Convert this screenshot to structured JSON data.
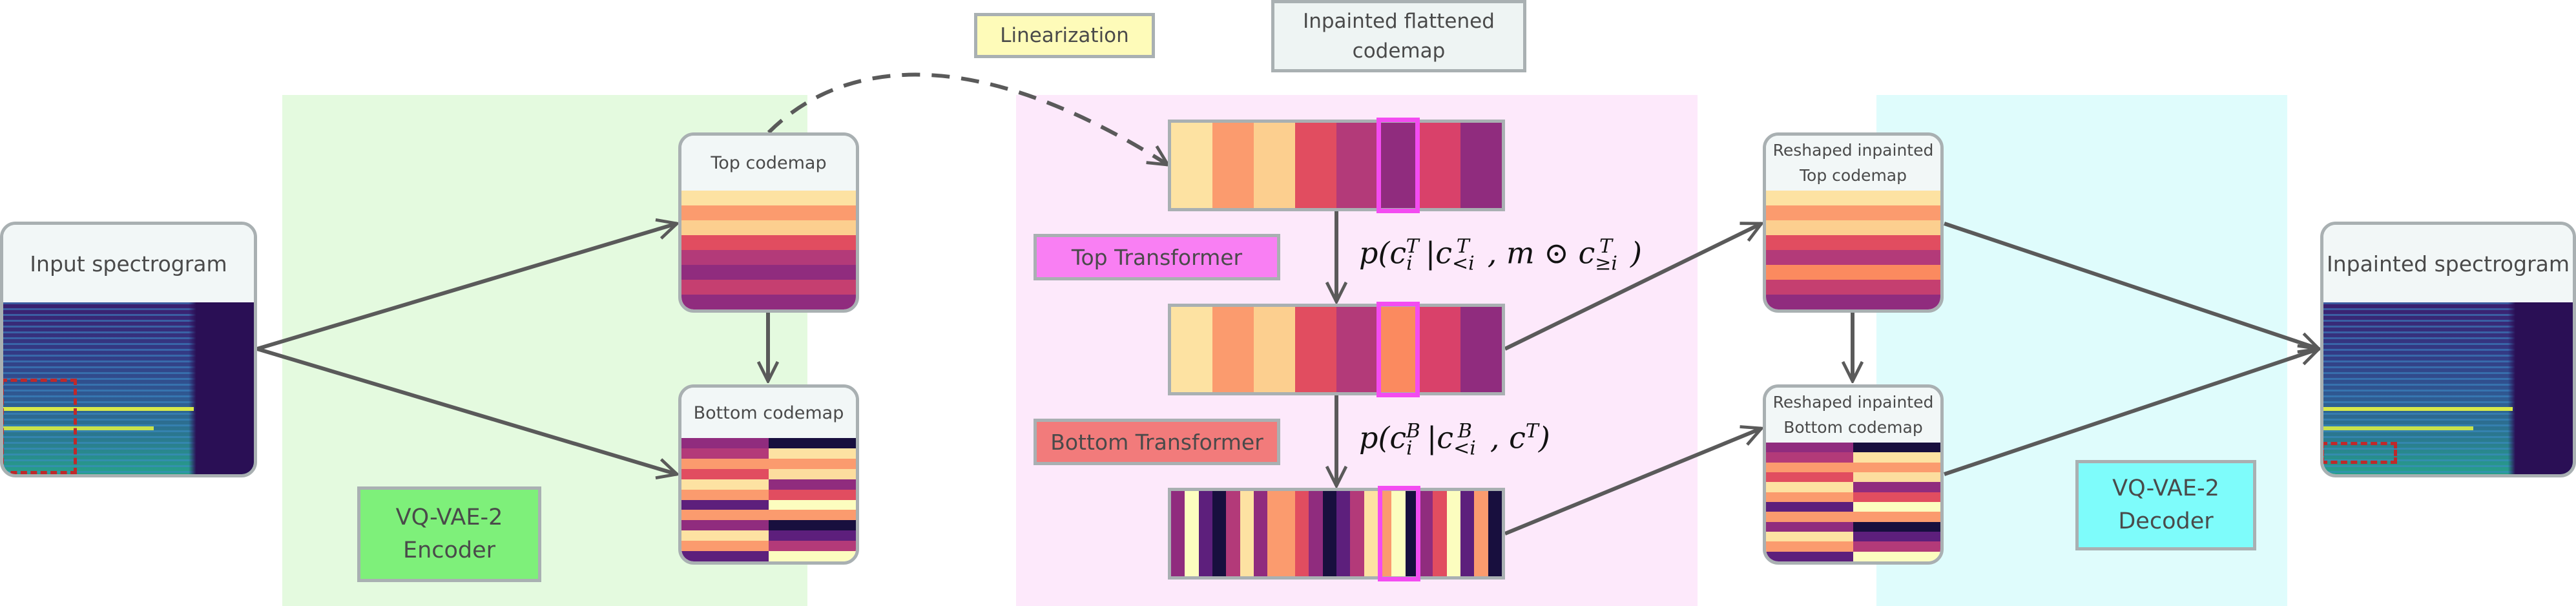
{
  "title": "",
  "regions": {
    "encoder_label": [
      "VQ-VAE-2",
      "Encoder"
    ],
    "decoder_label": [
      "VQ-VAE-2",
      "Decoder"
    ]
  },
  "cards": {
    "input": "Input spectrogram",
    "top_codemap": "Top codemap",
    "bottom_codemap": "Bottom codemap",
    "reshaped_top": [
      "Reshaped inpainted",
      "Top codemap"
    ],
    "reshaped_bottom": [
      "Reshaped inpainted",
      "Bottom codemap"
    ],
    "output": "Inpainted spectrogram"
  },
  "labels": {
    "linearization": "Linearization",
    "inpainted_flattened": [
      "Inpainted flattened",
      "codemap"
    ],
    "top_transformer": "Top Transformer",
    "bottom_transformer": "Bottom Transformer"
  },
  "formulas": {
    "top": "p(c_i^T | c_{<i}^T, m ⊙ c_{≥i}^T)",
    "bottom": "p(c_i^B | c_{<i}^B, c^T)"
  },
  "colors": {
    "encoder_bg": "#e4fadf",
    "transformer_bg": "#fde9fb",
    "decoder_bg": "#dffcfc",
    "encoder_label_bg": "#7ef07a",
    "decoder_label_bg": "#7efcfb",
    "top_transformer_bg": "#f97ff3",
    "bottom_transformer_bg": "#f27b7b",
    "linearization_bg": "#fefbb9",
    "flattened_bg": "#eef4f3",
    "highlight": "#f34cf1",
    "mask": "#c0282a",
    "arrow": "#5a5a5a"
  },
  "codemaps": {
    "top_rows": [
      "#fde2a2",
      "#fb9b6e",
      "#fccf8f",
      "#e14d60",
      "#b33a79",
      "#902c7e",
      "#c53f70",
      "#902c7e"
    ],
    "bottom_rows": [
      [
        "#902c7e",
        "#180f3e"
      ],
      [
        "#b33a79",
        "#fde2a2"
      ],
      [
        "#fb9b6e",
        "#fb9b6e"
      ],
      [
        "#e14d60",
        "#fcdd9e"
      ],
      [
        "#fde2a2",
        "#902c7e"
      ],
      [
        "#fb9b6e",
        "#e14d60"
      ],
      [
        "#5d1f7c",
        "#fcfdbf"
      ],
      [
        "#fb9b6e",
        "#fb9b6e"
      ],
      [
        "#902c7e",
        "#180f3e"
      ],
      [
        "#fde2a2",
        "#5d1f7c"
      ],
      [
        "#fb9b6e",
        "#b33a79"
      ],
      [
        "#5d1f7c",
        "#fcfdbf"
      ]
    ],
    "top_sequence": [
      "#fde2a2",
      "#fb9b6e",
      "#fccf8f",
      "#e14d60",
      "#b33a79",
      "#902c7e",
      "#d9416a",
      "#902c7e"
    ],
    "mid_sequence": [
      "#fde2a2",
      "#fb9b6e",
      "#fccf8f",
      "#e14d60",
      "#b33a79",
      "#fb8a5f",
      "#d9416a",
      "#902c7e"
    ],
    "bottom_sequence": [
      "#902c7e",
      "#fcfdbf",
      "#5d1f7c",
      "#180f3e",
      "#b33a79",
      "#fde2a2",
      "#902c7e",
      "#fb9b6e",
      "#fb9b6e",
      "#e14d60",
      "#902c7e",
      "#180f3e",
      "#5d1f7c",
      "#b33a79",
      "#fde2a2",
      "#fb9b6e",
      "#fcfdbf",
      "#180f3e",
      "#902c7e",
      "#e14d60",
      "#fcfdbf",
      "#5d1f7c",
      "#fb9b6e",
      "#180f3e"
    ]
  }
}
